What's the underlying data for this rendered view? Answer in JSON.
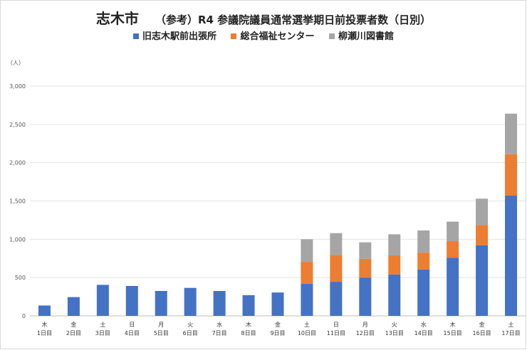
{
  "chart_data": {
    "type": "bar",
    "stacked": true,
    "title": "志木市",
    "subtitle": "（参考）R4 参議院議員通常選挙期日前投票者数（日別）",
    "unit_label": "（人）",
    "categories": [
      [
        "木",
        "1日目"
      ],
      [
        "金",
        "2日目"
      ],
      [
        "土",
        "3日目"
      ],
      [
        "日",
        "4日目"
      ],
      [
        "月",
        "5日目"
      ],
      [
        "火",
        "6日目"
      ],
      [
        "水",
        "7日目"
      ],
      [
        "木",
        "8日目"
      ],
      [
        "金",
        "9日目"
      ],
      [
        "土",
        "10日目"
      ],
      [
        "日",
        "11日目"
      ],
      [
        "月",
        "12日目"
      ],
      [
        "火",
        "13日目"
      ],
      [
        "水",
        "14日目"
      ],
      [
        "木",
        "15日目"
      ],
      [
        "金",
        "16日目"
      ],
      [
        "土",
        "17日目"
      ]
    ],
    "series": [
      {
        "name": "旧志木駅前出張所",
        "color": "#4472c4",
        "values": [
          135,
          245,
          405,
          390,
          325,
          365,
          325,
          270,
          305,
          420,
          445,
          500,
          540,
          605,
          760,
          920,
          1570
        ]
      },
      {
        "name": "総合福祉センター",
        "color": "#ed7d31",
        "values": [
          0,
          0,
          0,
          0,
          0,
          0,
          0,
          0,
          0,
          285,
          350,
          245,
          250,
          220,
          215,
          265,
          540
        ]
      },
      {
        "name": "柳瀬川図書館",
        "color": "#a5a5a5",
        "values": [
          0,
          0,
          0,
          0,
          0,
          0,
          0,
          0,
          0,
          295,
          285,
          215,
          275,
          290,
          255,
          345,
          530
        ]
      }
    ],
    "ylim": [
      0,
      3000
    ],
    "yticks": [
      0,
      500,
      1000,
      1500,
      2000,
      2500,
      3000
    ],
    "ytick_labels": [
      "0",
      "500",
      "1,000",
      "1,500",
      "2,000",
      "2,500",
      "3,000"
    ],
    "grid": true,
    "legend_position": "top-center"
  }
}
